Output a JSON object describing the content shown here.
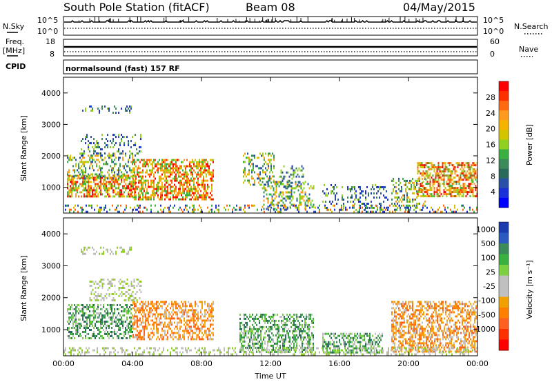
{
  "header": {
    "station": "South Pole Station (fitACF)",
    "beam": "Beam 08",
    "date": "04/May/2015"
  },
  "left_labels": {
    "nsky": "N.Sky",
    "freq": "Freq.",
    "freq_unit": "[MHz]",
    "cpid": "CPID"
  },
  "right_labels": {
    "nsearch": "N.Search",
    "nave": "Nave"
  },
  "mode_text": "normalsound (fast) 157 RF",
  "chart_data": [
    {
      "type": "line",
      "name": "noise-panel",
      "series": [
        {
          "name": "N.Sky"
        },
        {
          "name": "N.Search"
        }
      ],
      "y_ticks_left": [
        "10^5",
        "10^0"
      ],
      "y_ticks_right": [
        "10^5",
        "10^0"
      ]
    },
    {
      "type": "line",
      "name": "frequency-panel",
      "series": [
        {
          "name": "Freq."
        },
        {
          "name": "Nave"
        }
      ],
      "y_ticks_left": [
        "18",
        "8"
      ],
      "y_ticks_right": [
        "60",
        "0"
      ]
    },
    {
      "type": "heatmap",
      "name": "power-panel",
      "ylabel": "Slant Range [km]",
      "ylim": [
        180,
        4500
      ],
      "y_ticks": [
        1000,
        2000,
        3000,
        4000
      ],
      "x_ticks": [
        "00:00",
        "04:00",
        "08:00",
        "12:00",
        "16:00",
        "20:00",
        "00:00"
      ],
      "colorbar": {
        "label": "Power [dB]",
        "ticks": [
          "28",
          "24",
          "20",
          "16",
          "12",
          "8",
          "4"
        ],
        "colors": [
          "#ff0000",
          "#ff3000",
          "#ff6a10",
          "#ff9a20",
          "#f5b300",
          "#d4c400",
          "#90d020",
          "#3ab040",
          "#3a8a5a",
          "#2a6a5a",
          "#2a50a8",
          "#1a30d8",
          "#0000ff"
        ]
      },
      "echo_bands": [
        {
          "t0": 0.2,
          "t1": 4.2,
          "r0": 700,
          "r1": 1400,
          "level": "high"
        },
        {
          "t0": 0.2,
          "t1": 4.0,
          "r0": 1300,
          "r1": 2100,
          "level": "mid"
        },
        {
          "t0": 4.0,
          "t1": 8.7,
          "r0": 650,
          "r1": 1900,
          "level": "high"
        },
        {
          "t0": 1.0,
          "t1": 4.5,
          "r0": 2000,
          "r1": 2700,
          "level": "low"
        },
        {
          "t0": 10.4,
          "t1": 12.2,
          "r0": 1100,
          "r1": 2100,
          "level": "mid"
        },
        {
          "t0": 11.5,
          "t1": 14.5,
          "r0": 300,
          "r1": 1200,
          "level": "mid"
        },
        {
          "t0": 12.5,
          "t1": 14.0,
          "r0": 1000,
          "r1": 1700,
          "level": "low"
        },
        {
          "t0": 15.0,
          "t1": 18.8,
          "r0": 300,
          "r1": 1100,
          "level": "low"
        },
        {
          "t0": 19.0,
          "t1": 21.0,
          "r0": 300,
          "r1": 1300,
          "level": "mid"
        },
        {
          "t0": 20.5,
          "t1": 24.0,
          "r0": 700,
          "r1": 1800,
          "level": "high"
        },
        {
          "t0": 0.0,
          "t1": 24.0,
          "r0": 180,
          "r1": 450,
          "level": "ground"
        },
        {
          "t0": 1.0,
          "t1": 4.0,
          "r0": 3350,
          "r1": 3600,
          "level": "low"
        }
      ]
    },
    {
      "type": "heatmap",
      "name": "velocity-panel",
      "ylabel": "Slant Range [km]",
      "xlabel": "Time UT",
      "ylim": [
        180,
        4500
      ],
      "y_ticks": [
        1000,
        2000,
        3000,
        4000
      ],
      "x_ticks": [
        "00:00",
        "04:00",
        "08:00",
        "12:00",
        "16:00",
        "20:00",
        "00:00"
      ],
      "colorbar": {
        "label": "Velocity [m s⁻¹]",
        "ticks": [
          "1000",
          "500",
          "100",
          "25",
          "-25",
          "-100",
          "-500",
          "-1000"
        ],
        "colors": [
          "#1a3ab0",
          "#2a5ac0",
          "#3a8a5a",
          "#3ab040",
          "#7ad040",
          "#c0c0c0",
          "#c0c0c0",
          "#f0a000",
          "#ff8000",
          "#ff6020",
          "#ff3000",
          "#ff0000"
        ]
      },
      "echo_bands": [
        {
          "t0": 0.2,
          "t1": 4.0,
          "r0": 700,
          "r1": 1800,
          "level": "green"
        },
        {
          "t0": 4.0,
          "t1": 8.7,
          "r0": 700,
          "r1": 1900,
          "level": "orange"
        },
        {
          "t0": 1.5,
          "t1": 4.5,
          "r0": 1900,
          "r1": 2600,
          "level": "gray"
        },
        {
          "t0": 10.2,
          "t1": 14.5,
          "r0": 300,
          "r1": 1500,
          "level": "green"
        },
        {
          "t0": 15.0,
          "t1": 18.5,
          "r0": 300,
          "r1": 900,
          "level": "green"
        },
        {
          "t0": 19.0,
          "t1": 24.0,
          "r0": 300,
          "r1": 1900,
          "level": "orange"
        },
        {
          "t0": 0.0,
          "t1": 24.0,
          "r0": 180,
          "r1": 450,
          "level": "gray"
        },
        {
          "t0": 1.0,
          "t1": 4.0,
          "r0": 3350,
          "r1": 3600,
          "level": "gray"
        }
      ]
    }
  ]
}
